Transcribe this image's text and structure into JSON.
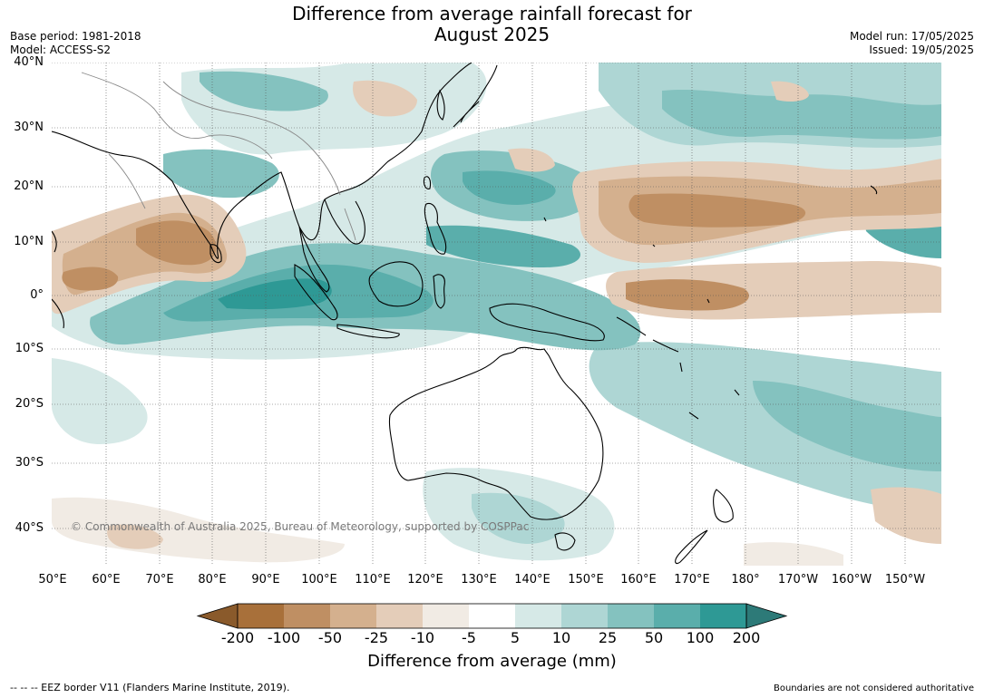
{
  "title_line1": "Difference from average rainfall forecast for",
  "title_line2": "August 2025",
  "base_period": "Base period: 1981-2018",
  "model": "Model: ACCESS-S2",
  "model_run": "Model run: 17/05/2025",
  "issued": "Issued: 19/05/2025",
  "copyright": "© Commonwealth of Australia 2025, Bureau of Meteorology, supported by COSPPac",
  "lat_ticks": [
    "40°N",
    "30°N",
    "20°N",
    "10°N",
    "0°",
    "10°S",
    "20°S",
    "30°S",
    "40°S"
  ],
  "lon_ticks": [
    "50°E",
    "60°E",
    "70°E",
    "80°E",
    "90°E",
    "100°E",
    "110°E",
    "120°E",
    "130°E",
    "140°E",
    "150°E",
    "160°E",
    "170°E",
    "180°",
    "170°W",
    "160°W",
    "150°W"
  ],
  "colorbar": {
    "title": "Difference from average (mm)",
    "labels": [
      "-200",
      "-100",
      "-50",
      "-25",
      "-10",
      "-5",
      "5",
      "10",
      "25",
      "50",
      "100",
      "200"
    ],
    "colors": [
      "#8a5a2b",
      "#a8703a",
      "#bf8f63",
      "#d4b08e",
      "#e4cdb9",
      "#f1ebe4",
      "#ffffff",
      "#d6e9e7",
      "#aed6d4",
      "#84c2bf",
      "#5aaeab",
      "#2e9995",
      "#2d7a78"
    ]
  },
  "footer_left": "--  --  -- EEZ border V11 (Flanders Marine Institute, 2019).",
  "footer_right": "Boundaries are not considered authoritative"
}
